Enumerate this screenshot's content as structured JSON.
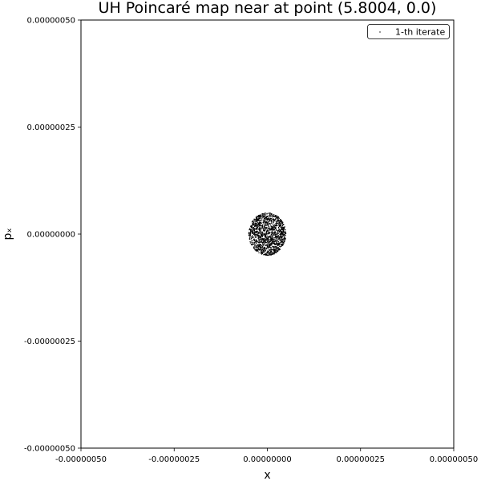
{
  "chart_data": {
    "type": "scatter",
    "title": "UH Poincaré map near at point (5.8004, 0.0)",
    "xlabel": "x",
    "ylabel": "pₓ",
    "xlim": [
      -5e-07,
      5e-07
    ],
    "ylim": [
      -5e-07,
      5e-07
    ],
    "x_ticks": [
      "-0.00000050",
      "-0.00000025",
      "0.00000000",
      "0.00000025",
      "0.00000050"
    ],
    "y_ticks": [
      "-0.00000050",
      "-0.00000025",
      "0.00000000",
      "0.00000025",
      "0.00000050"
    ],
    "grid": false,
    "legend_position": "top-right",
    "series": [
      {
        "name": "1-th iterate",
        "color": "#000000",
        "marker": "point",
        "cluster": {
          "center": [
            0.0,
            0.0
          ],
          "radius_x": 5e-08,
          "radius_y": 5e-08,
          "count": 1400
        }
      }
    ]
  }
}
